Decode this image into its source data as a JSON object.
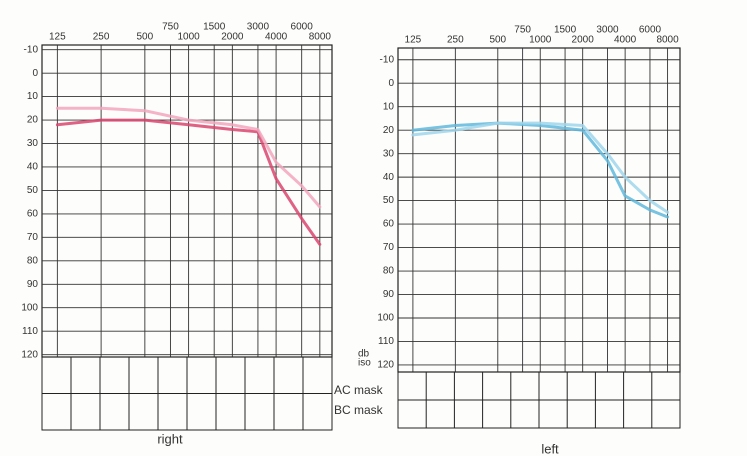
{
  "chart_data": [
    {
      "type": "line",
      "caption": "right",
      "xscale": "log",
      "grid": true,
      "x": [
        125,
        250,
        500,
        1000,
        2000,
        3000,
        4000,
        6000,
        8000
      ],
      "xlim": [
        98,
        9700
      ],
      "xticks": [
        125,
        250,
        500,
        750,
        1000,
        1500,
        2000,
        3000,
        4000,
        6000,
        8000
      ],
      "ylim": [
        -12,
        121
      ],
      "y_inverted": true,
      "yticks": [
        -10,
        0,
        10,
        20,
        30,
        40,
        50,
        60,
        70,
        80,
        90,
        100,
        110,
        120
      ],
      "series": [
        {
          "color": "#d9466f",
          "values": [
            22,
            20,
            20,
            22,
            24,
            25,
            45,
            62,
            73
          ]
        },
        {
          "color": "#f2a6bd",
          "values": [
            15,
            15,
            16,
            20,
            22,
            24,
            38,
            48,
            57
          ]
        }
      ]
    },
    {
      "type": "line",
      "caption": "left",
      "xscale": "log",
      "grid": true,
      "y_label": [
        "db",
        "iso"
      ],
      "x": [
        125,
        250,
        500,
        1000,
        2000,
        3000,
        4000,
        6000,
        8000
      ],
      "xlim": [
        98,
        9800
      ],
      "xticks": [
        125,
        250,
        500,
        750,
        1000,
        1500,
        2000,
        3000,
        4000,
        6000,
        8000
      ],
      "ylim": [
        -15,
        123
      ],
      "y_inverted": true,
      "yticks": [
        -10,
        0,
        10,
        20,
        30,
        40,
        50,
        60,
        70,
        80,
        90,
        100,
        110,
        120
      ],
      "series": [
        {
          "color": "#5fb8dc",
          "values": [
            20,
            18,
            17,
            18,
            20,
            33,
            48,
            54,
            57
          ]
        },
        {
          "color": "#9fd6ec",
          "values": [
            22,
            20,
            17,
            17,
            18,
            30,
            40,
            50,
            55
          ]
        }
      ]
    }
  ],
  "mask_labels": [
    "AC mask",
    "BC mask"
  ]
}
